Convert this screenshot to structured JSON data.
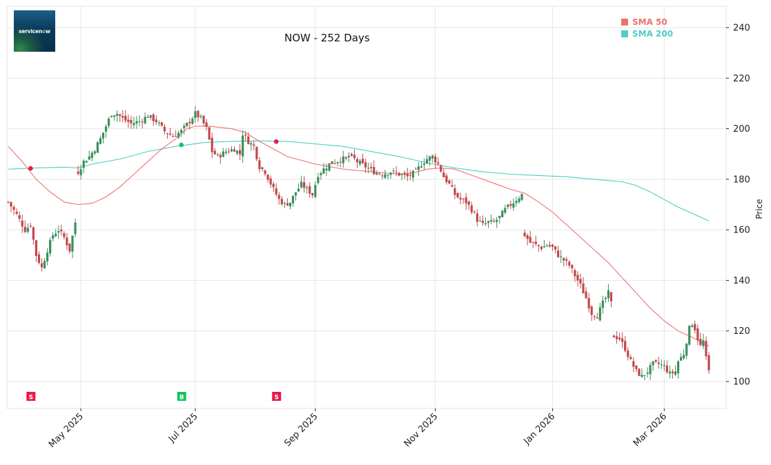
{
  "chart_data": {
    "type": "candlestick",
    "title": "NOW - 252 Days",
    "ticker": "NOW",
    "logo_text": "servicenow",
    "ylabel": "Price",
    "xlabel": "",
    "ylim": [
      90,
      248
    ],
    "y_ticks": [
      100,
      120,
      140,
      160,
      180,
      200,
      220,
      240
    ],
    "x_ticks": [
      {
        "label": "May 2025",
        "index": 26
      },
      {
        "label": "Jul 2025",
        "index": 67
      },
      {
        "label": "Sep 2025",
        "index": 110
      },
      {
        "label": "Nov 2025",
        "index": 153
      },
      {
        "label": "Jan 2026",
        "index": 195
      },
      {
        "label": "Mar 2026",
        "index": 235
      }
    ],
    "grid": true,
    "legend": {
      "position": "top-right",
      "entries": [
        {
          "label": "SMA 50",
          "color": "#f07070"
        },
        {
          "label": "SMA 200",
          "color": "#4ecdc4"
        }
      ]
    },
    "colors": {
      "up": "#3a8f5c",
      "down": "#c0474b",
      "sma50": "#f07070",
      "sma200": "#4ecdc4",
      "sell": "#e8194b",
      "buy": "#13c35a",
      "grid": "#e6e6e6"
    },
    "n_days": 252,
    "close_anchors": [
      [
        0,
        171
      ],
      [
        3,
        166
      ],
      [
        6,
        160
      ],
      [
        8,
        162
      ],
      [
        10,
        150
      ],
      [
        12,
        145
      ],
      [
        14,
        152
      ],
      [
        16,
        158
      ],
      [
        18,
        160
      ],
      [
        20,
        157
      ],
      [
        22,
        152
      ],
      [
        24,
        163
      ],
      [
        25,
        183
      ],
      [
        27,
        187
      ],
      [
        29,
        189
      ],
      [
        31,
        192
      ],
      [
        33,
        196
      ],
      [
        35,
        201
      ],
      [
        37,
        206
      ],
      [
        39,
        206
      ],
      [
        41,
        204
      ],
      [
        44,
        202
      ],
      [
        47,
        203
      ],
      [
        50,
        205
      ],
      [
        53,
        203
      ],
      [
        56,
        199
      ],
      [
        59,
        197
      ],
      [
        62,
        199
      ],
      [
        65,
        203
      ],
      [
        67,
        206
      ],
      [
        69,
        204
      ],
      [
        71,
        200
      ],
      [
        73,
        191
      ],
      [
        75,
        189
      ],
      [
        78,
        191
      ],
      [
        81,
        192
      ],
      [
        83,
        190
      ],
      [
        84,
        198
      ],
      [
        86,
        195
      ],
      [
        88,
        193
      ],
      [
        90,
        185
      ],
      [
        92,
        183
      ],
      [
        95,
        176
      ],
      [
        97,
        172
      ],
      [
        99,
        170
      ],
      [
        101,
        171
      ],
      [
        103,
        175
      ],
      [
        105,
        178
      ],
      [
        107,
        176
      ],
      [
        109,
        174
      ],
      [
        111,
        182
      ],
      [
        113,
        184
      ],
      [
        115,
        186
      ],
      [
        117,
        187
      ],
      [
        120,
        188
      ],
      [
        123,
        189
      ],
      [
        125,
        187
      ],
      [
        128,
        185
      ],
      [
        131,
        183
      ],
      [
        134,
        182
      ],
      [
        137,
        183
      ],
      [
        140,
        182
      ],
      [
        143,
        181
      ],
      [
        146,
        183
      ],
      [
        148,
        186
      ],
      [
        150,
        188
      ],
      [
        152,
        189
      ],
      [
        154,
        186
      ],
      [
        156,
        181
      ],
      [
        158,
        178
      ],
      [
        160,
        174
      ],
      [
        162,
        172
      ],
      [
        164,
        171
      ],
      [
        166,
        168
      ],
      [
        168,
        164
      ],
      [
        170,
        162
      ],
      [
        172,
        163
      ],
      [
        174,
        163
      ],
      [
        176,
        165
      ],
      [
        178,
        168
      ],
      [
        180,
        170
      ],
      [
        182,
        172
      ],
      [
        184,
        174
      ],
      [
        185,
        158
      ],
      [
        187,
        155
      ],
      [
        189,
        154
      ],
      [
        191,
        153
      ],
      [
        193,
        154
      ],
      [
        195,
        153
      ],
      [
        197,
        150
      ],
      [
        199,
        148
      ],
      [
        201,
        146
      ],
      [
        203,
        142
      ],
      [
        205,
        138
      ],
      [
        207,
        133
      ],
      [
        209,
        127
      ],
      [
        211,
        126
      ],
      [
        213,
        131
      ],
      [
        215,
        135
      ],
      [
        216,
        131
      ],
      [
        217,
        118
      ],
      [
        219,
        117
      ],
      [
        221,
        113
      ],
      [
        223,
        108
      ],
      [
        225,
        104
      ],
      [
        227,
        102
      ],
      [
        229,
        104
      ],
      [
        231,
        107
      ],
      [
        233,
        107
      ],
      [
        235,
        106
      ],
      [
        237,
        103
      ],
      [
        239,
        104
      ],
      [
        240,
        108
      ],
      [
        242,
        111
      ],
      [
        243,
        116
      ],
      [
        244,
        121
      ],
      [
        245,
        123
      ],
      [
        246,
        121
      ],
      [
        247,
        117
      ],
      [
        248,
        114
      ],
      [
        249,
        116
      ],
      [
        250,
        109
      ],
      [
        251,
        104
      ]
    ],
    "sma50_points": [
      [
        0,
        193
      ],
      [
        5,
        187
      ],
      [
        10,
        180
      ],
      [
        15,
        175
      ],
      [
        20,
        171
      ],
      [
        25,
        170
      ],
      [
        30,
        170.5
      ],
      [
        35,
        173
      ],
      [
        40,
        177
      ],
      [
        45,
        182
      ],
      [
        50,
        187
      ],
      [
        55,
        192
      ],
      [
        60,
        196
      ],
      [
        64,
        200
      ],
      [
        67,
        201
      ],
      [
        72,
        201
      ],
      [
        80,
        200
      ],
      [
        85,
        198.5
      ],
      [
        90,
        195
      ],
      [
        95,
        192
      ],
      [
        100,
        189
      ],
      [
        105,
        187.5
      ],
      [
        110,
        186
      ],
      [
        115,
        185
      ],
      [
        120,
        184
      ],
      [
        125,
        183.5
      ],
      [
        130,
        183
      ],
      [
        135,
        182.5
      ],
      [
        140,
        182
      ],
      [
        145,
        182.5
      ],
      [
        150,
        184
      ],
      [
        155,
        184.5
      ],
      [
        160,
        184
      ],
      [
        165,
        182
      ],
      [
        170,
        180
      ],
      [
        175,
        178
      ],
      [
        180,
        176
      ],
      [
        185,
        174.5
      ],
      [
        190,
        171
      ],
      [
        195,
        167
      ],
      [
        200,
        162
      ],
      [
        205,
        157
      ],
      [
        210,
        152
      ],
      [
        215,
        147
      ],
      [
        220,
        141
      ],
      [
        225,
        135
      ],
      [
        230,
        129
      ],
      [
        235,
        124
      ],
      [
        240,
        120
      ],
      [
        245,
        117.5
      ],
      [
        251,
        114
      ]
    ],
    "sma200_points": [
      [
        0,
        184
      ],
      [
        10,
        184.5
      ],
      [
        20,
        184.8
      ],
      [
        25,
        184.5
      ],
      [
        30,
        186
      ],
      [
        40,
        188
      ],
      [
        50,
        191
      ],
      [
        60,
        193
      ],
      [
        70,
        194.5
      ],
      [
        80,
        195
      ],
      [
        90,
        195.2
      ],
      [
        100,
        195
      ],
      [
        110,
        194
      ],
      [
        120,
        193
      ],
      [
        130,
        191
      ],
      [
        140,
        189
      ],
      [
        150,
        186.5
      ],
      [
        160,
        184.5
      ],
      [
        170,
        183
      ],
      [
        180,
        182
      ],
      [
        190,
        181.5
      ],
      [
        200,
        181
      ],
      [
        210,
        180
      ],
      [
        215,
        179.5
      ],
      [
        220,
        179
      ],
      [
        225,
        177.5
      ],
      [
        230,
        175
      ],
      [
        235,
        172
      ],
      [
        240,
        169
      ],
      [
        245,
        166.5
      ],
      [
        251,
        163.5
      ]
    ],
    "crossovers": [
      {
        "index": 8,
        "price": 184.3,
        "type": "death",
        "color": "#e8194b"
      },
      {
        "index": 62,
        "price": 193.6,
        "type": "golden",
        "color": "#13c35a"
      },
      {
        "index": 96,
        "price": 194.9,
        "type": "death",
        "color": "#e8194b"
      }
    ],
    "signals": [
      {
        "index": 8,
        "label": "S",
        "type": "sell"
      },
      {
        "index": 62,
        "label": "B",
        "type": "buy"
      },
      {
        "index": 96,
        "label": "S",
        "type": "sell"
      }
    ]
  }
}
